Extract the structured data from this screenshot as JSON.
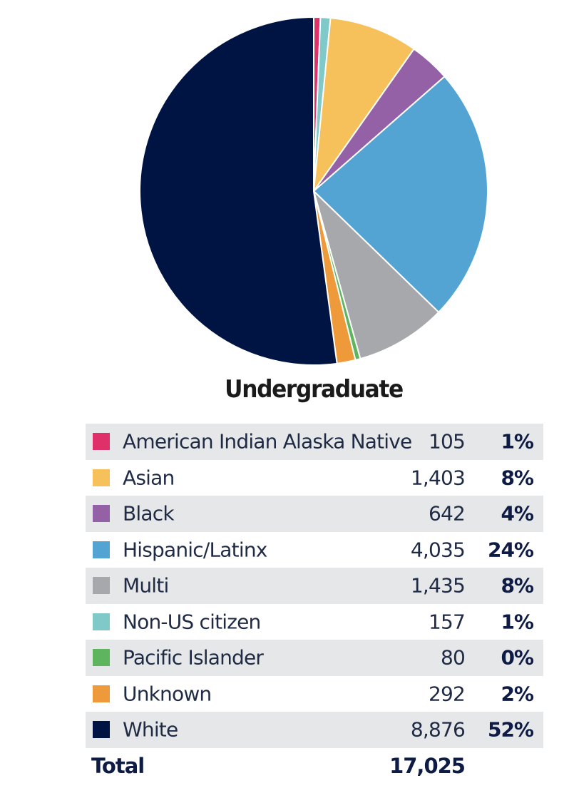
{
  "chart_data": {
    "type": "pie",
    "title": "Undergraduate",
    "categories": [
      "American Indian Alaska Native",
      "Asian",
      "Black",
      "Hispanic/Latinx",
      "Multi",
      "Non-US citizen",
      "Pacific Islander",
      "Unknown",
      "White"
    ],
    "values": [
      105,
      1403,
      642,
      4035,
      1435,
      157,
      80,
      292,
      8876
    ],
    "value_labels": [
      "105",
      "1,403",
      "642",
      "4,035",
      "1,435",
      "157",
      "80",
      "292",
      "8,876"
    ],
    "percent_labels": [
      "1%",
      "8%",
      "4%",
      "24%",
      "8%",
      "1%",
      "0%",
      "2%",
      "52%"
    ],
    "colors": [
      "#e0306a",
      "#f6c05a",
      "#9561a6",
      "#53a4d3",
      "#a6a8ab",
      "#7fc9c9",
      "#5fb55d",
      "#ee9a3a",
      "#001443"
    ],
    "slice_order": [
      0,
      5,
      1,
      2,
      3,
      4,
      6,
      7,
      8
    ],
    "total_label": "Total",
    "total_value": "17,025",
    "legend_placement": "bottom"
  }
}
